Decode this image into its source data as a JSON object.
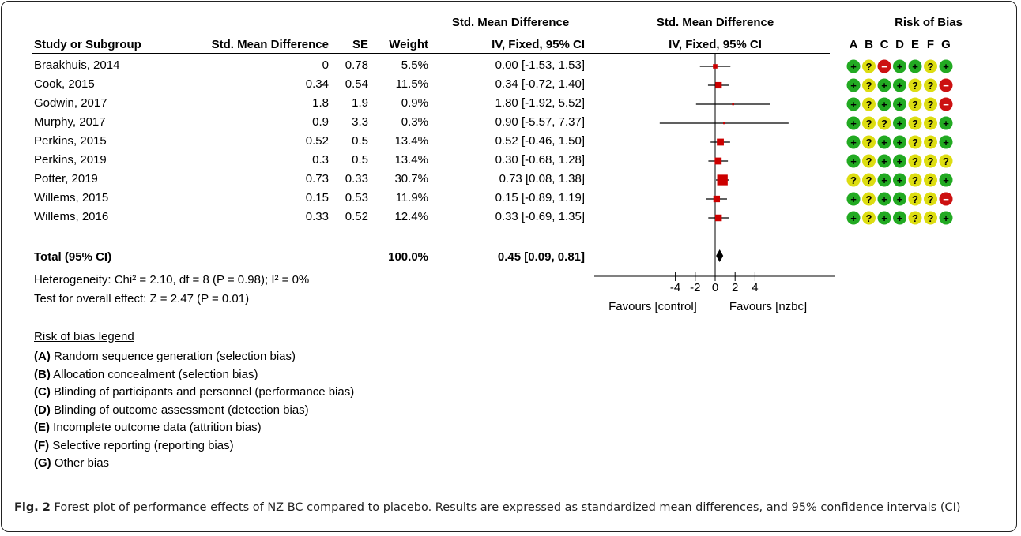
{
  "headers": {
    "smd_group": "Std. Mean Difference",
    "study": "Study or Subgroup",
    "smd": "Std. Mean Difference",
    "se": "SE",
    "weight": "Weight",
    "ci": "IV, Fixed, 95% CI",
    "plot_group": "Std. Mean Difference",
    "plot_ci": "IV, Fixed, 95% CI",
    "rob": "Risk of Bias",
    "rob_cols": [
      "A",
      "B",
      "C",
      "D",
      "E",
      "F",
      "G"
    ]
  },
  "total": {
    "label": "Total (95% CI)",
    "weight": "100.0%",
    "ci": "0.45 [0.09, 0.81]"
  },
  "heterogeneity": "Heterogeneity: Chi² = 2.10, df = 8 (P = 0.98); I² = 0%",
  "overall_effect": "Test for overall effect: Z = 2.47 (P = 0.01)",
  "legend": {
    "title": "Risk of bias legend",
    "items": [
      {
        "key": "(A)",
        "text": " Random sequence generation (selection bias)"
      },
      {
        "key": "(B)",
        "text": " Allocation concealment (selection bias)"
      },
      {
        "key": "(C)",
        "text": " Blinding of participants and personnel (performance bias)"
      },
      {
        "key": "(D)",
        "text": " Blinding of outcome assessment (detection bias)"
      },
      {
        "key": "(E)",
        "text": " Incomplete outcome data (attrition bias)"
      },
      {
        "key": "(F)",
        "text": " Selective reporting (reporting bias)"
      },
      {
        "key": "(G)",
        "text": " Other bias"
      }
    ]
  },
  "caption": {
    "label": "Fig. 2",
    "text": " Forest plot of performance effects of NZ BC compared to placebo. Results are expressed as standardized mean differences, and 95% confidence intervals (CI)"
  },
  "colors": {
    "low": "#22aa22",
    "unclear": "#dddd11",
    "high": "#cc1111",
    "marker": "#cc0000"
  },
  "chart_data": {
    "type": "forest",
    "x_axis": {
      "ticks": [
        -4,
        -2,
        0,
        2,
        4
      ],
      "tick_labels": [
        "-4",
        "-2",
        "0",
        "2",
        "4"
      ],
      "range": [
        -10,
        10
      ],
      "left_label": "Favours [control]",
      "right_label": "Favours [nzbc]"
    },
    "studies": [
      {
        "name": "Braakhuis, 2014",
        "smd": "0",
        "se": "0.78",
        "weight_label": "5.5%",
        "ci_label": "0.00 [-1.53, 1.53]",
        "est": 0.0,
        "lo": -1.53,
        "hi": 1.53,
        "weight": 5.5,
        "rob": [
          "low",
          "unclear",
          "high",
          "low",
          "low",
          "unclear",
          "low"
        ]
      },
      {
        "name": "Cook, 2015",
        "smd": "0.34",
        "se": "0.54",
        "weight_label": "11.5%",
        "ci_label": "0.34 [-0.72, 1.40]",
        "est": 0.34,
        "lo": -0.72,
        "hi": 1.4,
        "weight": 11.5,
        "rob": [
          "low",
          "unclear",
          "low",
          "low",
          "unclear",
          "unclear",
          "high"
        ]
      },
      {
        "name": "Godwin, 2017",
        "smd": "1.8",
        "se": "1.9",
        "weight_label": "0.9%",
        "ci_label": "1.80 [-1.92, 5.52]",
        "est": 1.8,
        "lo": -1.92,
        "hi": 5.52,
        "weight": 0.9,
        "rob": [
          "low",
          "unclear",
          "low",
          "low",
          "unclear",
          "unclear",
          "high"
        ]
      },
      {
        "name": "Murphy, 2017",
        "smd": "0.9",
        "se": "3.3",
        "weight_label": "0.3%",
        "ci_label": "0.90 [-5.57, 7.37]",
        "est": 0.9,
        "lo": -5.57,
        "hi": 7.37,
        "weight": 0.3,
        "rob": [
          "low",
          "unclear",
          "unclear",
          "low",
          "unclear",
          "unclear",
          "low"
        ]
      },
      {
        "name": "Perkins, 2015",
        "smd": "0.52",
        "se": "0.5",
        "weight_label": "13.4%",
        "ci_label": "0.52 [-0.46, 1.50]",
        "est": 0.52,
        "lo": -0.46,
        "hi": 1.5,
        "weight": 13.4,
        "rob": [
          "low",
          "unclear",
          "low",
          "low",
          "unclear",
          "unclear",
          "low"
        ]
      },
      {
        "name": "Perkins, 2019",
        "smd": "0.3",
        "se": "0.5",
        "weight_label": "13.4%",
        "ci_label": "0.30 [-0.68, 1.28]",
        "est": 0.3,
        "lo": -0.68,
        "hi": 1.28,
        "weight": 13.4,
        "rob": [
          "low",
          "unclear",
          "low",
          "low",
          "unclear",
          "unclear",
          "unclear"
        ]
      },
      {
        "name": "Potter, 2019",
        "smd": "0.73",
        "se": "0.33",
        "weight_label": "30.7%",
        "ci_label": "0.73 [0.08, 1.38]",
        "est": 0.73,
        "lo": 0.08,
        "hi": 1.38,
        "weight": 30.7,
        "rob": [
          "unclear",
          "unclear",
          "low",
          "low",
          "unclear",
          "unclear",
          "low"
        ]
      },
      {
        "name": "Willems, 2015",
        "smd": "0.15",
        "se": "0.53",
        "weight_label": "11.9%",
        "ci_label": "0.15 [-0.89, 1.19]",
        "est": 0.15,
        "lo": -0.89,
        "hi": 1.19,
        "weight": 11.9,
        "rob": [
          "low",
          "unclear",
          "low",
          "low",
          "unclear",
          "unclear",
          "high"
        ]
      },
      {
        "name": "Willems, 2016",
        "smd": "0.33",
        "se": "0.52",
        "weight_label": "12.4%",
        "ci_label": "0.33 [-0.69, 1.35]",
        "est": 0.33,
        "lo": -0.69,
        "hi": 1.35,
        "weight": 12.4,
        "rob": [
          "low",
          "unclear",
          "low",
          "low",
          "unclear",
          "unclear",
          "low"
        ]
      }
    ],
    "pooled": {
      "est": 0.45,
      "lo": 0.09,
      "hi": 0.81
    }
  }
}
